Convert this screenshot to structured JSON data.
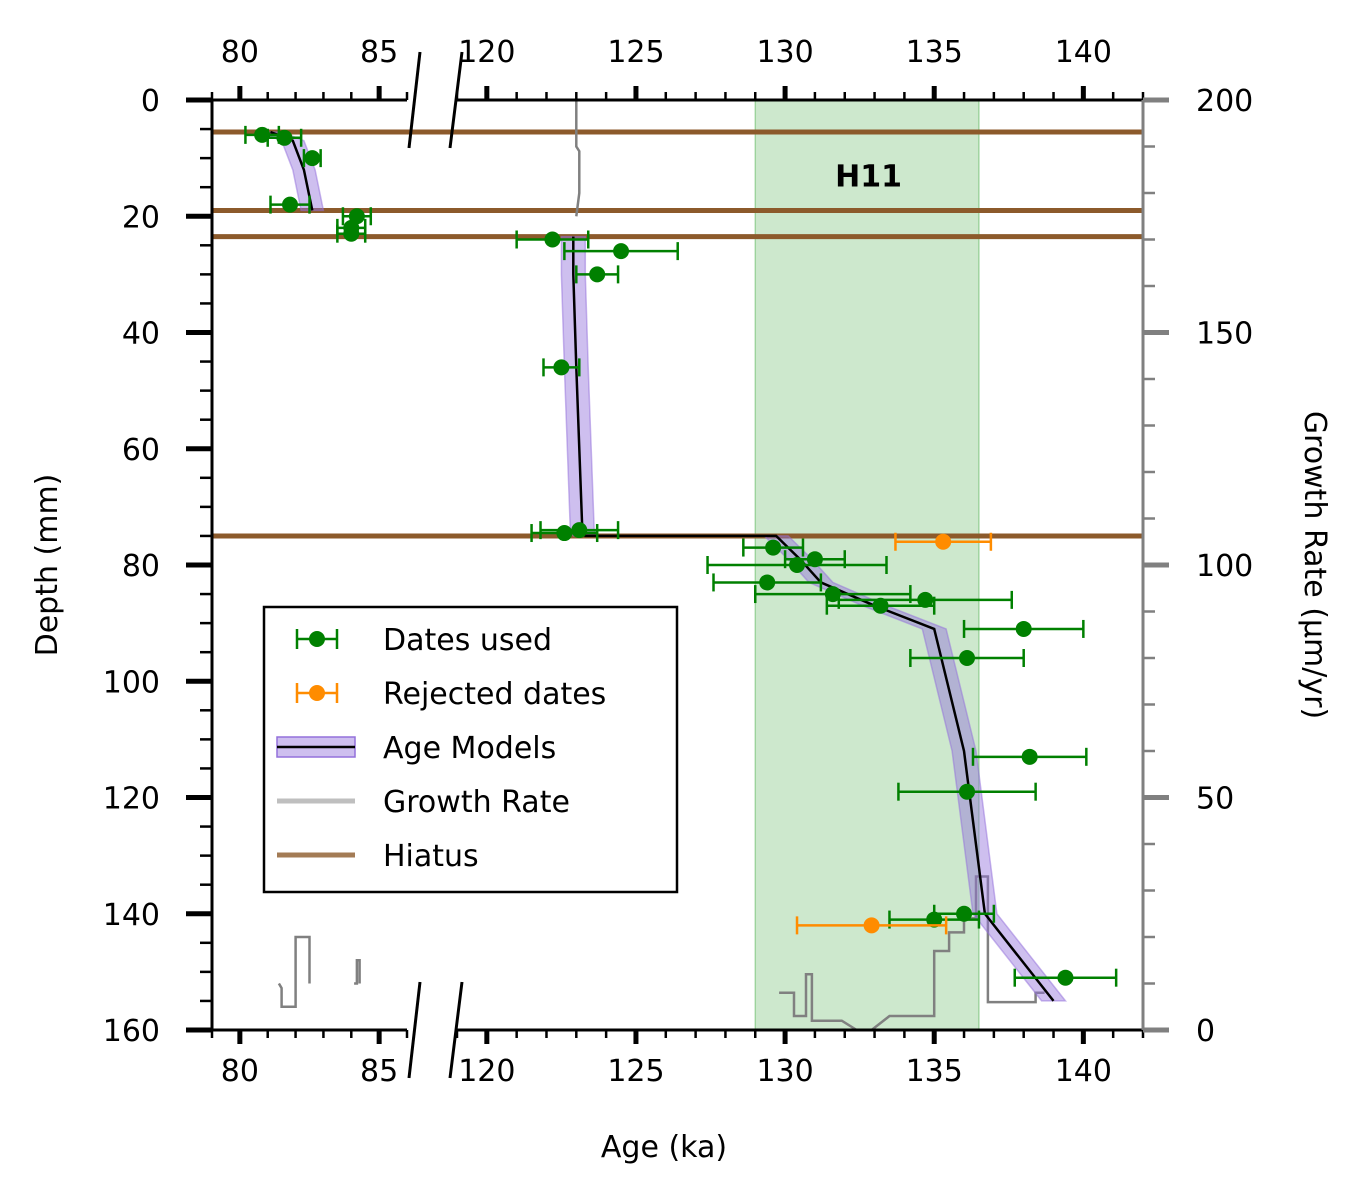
{
  "chart_data": {
    "type": "scatter",
    "xlabel": "Age (ka)",
    "ylabel": "Depth (mm)",
    "y2label": "Growth Rate (μm/yr)",
    "x_segments": [
      {
        "xlim": [
          79,
          86
        ],
        "ticks_major": [
          80,
          85
        ],
        "ticklabels": [
          "80",
          "85"
        ]
      },
      {
        "xlim": [
          119,
          142
        ],
        "ticks_major": [
          120,
          125,
          130,
          135,
          140
        ],
        "ticklabels": [
          "120",
          "125",
          "130",
          "135",
          "140"
        ]
      }
    ],
    "ylim": [
      0,
      160
    ],
    "y_inverted": true,
    "yticks": [
      0,
      20,
      40,
      60,
      80,
      100,
      120,
      140,
      160
    ],
    "yticklabels": [
      "0",
      "20",
      "40",
      "60",
      "80",
      "100",
      "120",
      "140",
      "160"
    ],
    "y2lim": [
      0,
      200
    ],
    "y2ticks": [
      0,
      50,
      100,
      150,
      200
    ],
    "y2ticklabels": [
      "0",
      "50",
      "100",
      "150",
      "200"
    ],
    "annotation": {
      "text": "H11",
      "x": 132.8,
      "y": 13
    },
    "shaded_band": {
      "label": "H11",
      "x_range": [
        129.0,
        136.5
      ],
      "color": "#2ca02c"
    },
    "hiatus": {
      "depths": [
        5.5,
        19.0,
        23.5,
        75.0
      ],
      "color": "#8c5a2b"
    },
    "colors": {
      "dates_used": "#008000",
      "rejected": "#ff8c00",
      "age_model": "#000000",
      "age_model_band": "#9370db",
      "growth_rate": "#808080"
    },
    "legend": {
      "position": "lower-left",
      "entries": [
        {
          "label": "Dates used",
          "symbol": "errorbar-green"
        },
        {
          "label": "Rejected dates",
          "symbol": "errorbar-orange"
        },
        {
          "label": "Age Models",
          "symbol": "line-band"
        },
        {
          "label": "Growth Rate",
          "symbol": "line-gray"
        },
        {
          "label": "Hiatus",
          "symbol": "line-brown"
        }
      ]
    },
    "series": [
      {
        "name": "Dates used",
        "points": [
          {
            "x": 80.8,
            "y": 6.0,
            "xerr": 0.6
          },
          {
            "x": 81.6,
            "y": 6.5,
            "xerr": 0.6
          },
          {
            "x": 82.6,
            "y": 10.0,
            "xerr": 0.3
          },
          {
            "x": 81.8,
            "y": 18.0,
            "xerr": 0.7
          },
          {
            "x": 84.2,
            "y": 20.0,
            "xerr": 0.5
          },
          {
            "x": 84.0,
            "y": 22.0,
            "xerr": 0.5
          },
          {
            "x": 84.0,
            "y": 23.0,
            "xerr": 0.5
          },
          {
            "x": 122.2,
            "y": 24.0,
            "xerr": 1.2
          },
          {
            "x": 124.5,
            "y": 26.0,
            "xerr": 1.9
          },
          {
            "x": 123.7,
            "y": 30.0,
            "xerr": 0.7
          },
          {
            "x": 122.5,
            "y": 46.0,
            "xerr": 0.6
          },
          {
            "x": 123.1,
            "y": 74.0,
            "xerr": 1.3
          },
          {
            "x": 122.6,
            "y": 74.5,
            "xerr": 1.1
          },
          {
            "x": 129.6,
            "y": 77.0,
            "xerr": 1.0
          },
          {
            "x": 131.0,
            "y": 79.0,
            "xerr": 1.0
          },
          {
            "x": 130.4,
            "y": 80.0,
            "xerr": 3.0
          },
          {
            "x": 129.4,
            "y": 83.0,
            "xerr": 1.8
          },
          {
            "x": 131.6,
            "y": 85.0,
            "xerr": 2.6
          },
          {
            "x": 133.2,
            "y": 87.0,
            "xerr": 1.8
          },
          {
            "x": 134.7,
            "y": 86.0,
            "xerr": 2.9
          },
          {
            "x": 138.0,
            "y": 91.0,
            "xerr": 2.0
          },
          {
            "x": 136.1,
            "y": 96.0,
            "xerr": 1.9
          },
          {
            "x": 138.2,
            "y": 113.0,
            "xerr": 1.9
          },
          {
            "x": 136.1,
            "y": 119.0,
            "xerr": 2.3
          },
          {
            "x": 136.0,
            "y": 140.0,
            "xerr": 1.0
          },
          {
            "x": 135.0,
            "y": 141.0,
            "xerr": 1.5
          },
          {
            "x": 139.4,
            "y": 151.0,
            "xerr": 1.7
          }
        ]
      },
      {
        "name": "Rejected dates",
        "points": [
          {
            "x": 135.3,
            "y": 76.0,
            "xerr": 1.6
          },
          {
            "x": 132.9,
            "y": 142.0,
            "xerr": 2.5
          }
        ]
      },
      {
        "name": "Age Models",
        "line": [
          [
            81.1,
            5.5
          ],
          [
            81.9,
            7.0
          ],
          [
            82.3,
            12.0
          ],
          [
            82.6,
            19.0
          ],
          [
            122.9,
            23.5
          ],
          [
            122.9,
            30.0
          ],
          [
            123.0,
            46.0
          ],
          [
            123.2,
            74.0
          ],
          [
            123.3,
            75.0
          ],
          [
            129.7,
            75.0
          ],
          [
            130.5,
            79.0
          ],
          [
            131.2,
            83.0
          ],
          [
            133.0,
            87.0
          ],
          [
            135.0,
            91.0
          ],
          [
            136.0,
            112.0
          ],
          [
            136.7,
            140.0
          ],
          [
            139.0,
            155.0
          ]
        ],
        "band_halfwidth": 0.4
      },
      {
        "name": "Growth Rate",
        "steps": [
          {
            "x": [
              123.0,
              123.0,
              123.1,
              123.1,
              123.0
            ],
            "y": [
              200.0,
              190.0,
              189.0,
              180.0,
              175.0
            ]
          },
          {
            "x": [
              81.4,
              81.5,
              81.5,
              82.0,
              82.0,
              82.5,
              82.5
            ],
            "y": [
              10.0,
              9.0,
              5.0,
              5.0,
              20.0,
              20.0,
              10.0
            ]
          },
          {
            "x": [
              84.1,
              84.2,
              84.2,
              84.3,
              84.3
            ],
            "y": [
              10.0,
              10.0,
              15.0,
              15.0,
              10.0
            ]
          },
          {
            "x": [
              129.8,
              130.3,
              130.3,
              130.7,
              130.7,
              130.9,
              130.9,
              131.9,
              132.4,
              132.9,
              133.5,
              135.0,
              135.0,
              135.5,
              135.5,
              136.0,
              136.0,
              136.4,
              136.4,
              136.8,
              136.8,
              138.4,
              138.4,
              138.7
            ],
            "y": [
              8.0,
              8.0,
              3.0,
              3.0,
              12.0,
              12.0,
              2.0,
              2.0,
              0.0,
              0.0,
              3.0,
              3.0,
              17.0,
              17.0,
              21.0,
              21.0,
              24.0,
              24.0,
              33.0,
              33.0,
              6.0,
              6.0,
              8.0,
              8.0
            ]
          }
        ]
      }
    ]
  }
}
